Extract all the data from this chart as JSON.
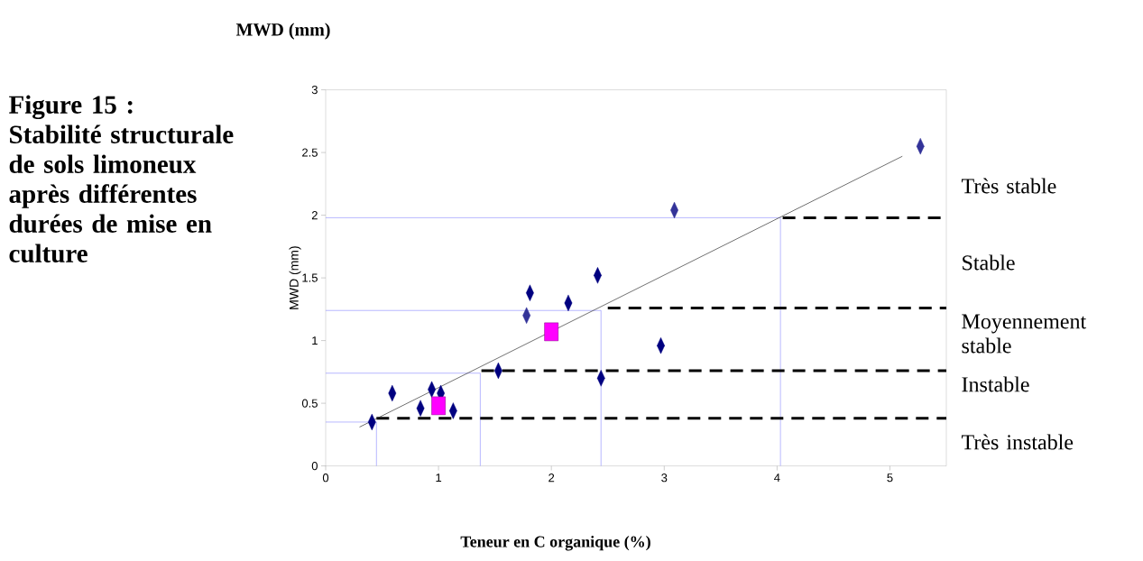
{
  "chart_data": {
    "type": "scatter",
    "title": "Figure 15 : Stabilité structurale de sols limoneux après différentes durées de mise en culture",
    "xlabel": "Teneur en C organique (%)",
    "ylabel": "MWD (mm)",
    "annotations": [
      "MWD (mm)",
      "Très stable",
      "Stable",
      "Moyennement stable",
      "Instable",
      "Très instable"
    ],
    "xlim": [
      0,
      5.5
    ],
    "ylim": [
      0,
      3
    ],
    "xticks": [
      0,
      1,
      2,
      3,
      4,
      5
    ],
    "yticks": [
      0,
      0.5,
      1,
      1.5,
      2,
      2.5,
      3
    ],
    "grid": false,
    "series": [
      {
        "type": "line",
        "color": "#9999ff",
        "marker": "none",
        "line_style": "solid",
        "x": [
          0,
          4.03,
          4.03
        ],
        "values": [
          1.98,
          1.98,
          0
        ]
      },
      {
        "type": "line",
        "color": "#9999ff",
        "marker": "none",
        "line_style": "solid",
        "x": [
          0,
          2.44,
          2.44
        ],
        "values": [
          1.24,
          1.24,
          0
        ]
      },
      {
        "type": "line",
        "color": "#9999ff",
        "marker": "none",
        "line_style": "solid",
        "x": [
          0,
          1.37,
          1.37
        ],
        "values": [
          0.74,
          0.74,
          0
        ]
      },
      {
        "type": "line",
        "color": "#9999ff",
        "marker": "none",
        "line_style": "solid",
        "x": [
          0,
          0.45,
          0.45
        ],
        "values": [
          0.35,
          0.35,
          0
        ]
      },
      {
        "type": "line",
        "color": "#000000",
        "marker": "none",
        "line_style": "dashed",
        "x": [
          4.05,
          5.5
        ],
        "values": [
          1.98,
          1.98
        ]
      },
      {
        "type": "line",
        "color": "#000000",
        "marker": "none",
        "line_style": "dashed",
        "x": [
          2.5,
          5.5
        ],
        "values": [
          1.26,
          1.26
        ]
      },
      {
        "type": "line",
        "color": "#000000",
        "marker": "none",
        "line_style": "dashed",
        "x": [
          1.38,
          5.5
        ],
        "values": [
          0.76,
          0.76
        ]
      },
      {
        "type": "line",
        "color": "#000000",
        "marker": "none",
        "line_style": "dashed",
        "x": [
          0.45,
          5.5
        ],
        "values": [
          0.38,
          0.38
        ]
      },
      {
        "type": "line",
        "color": "#333333",
        "marker": "none",
        "line_style": "solid",
        "x": [
          0.3,
          5.11
        ],
        "values": [
          0.31,
          2.47
        ]
      },
      {
        "color": "#000080",
        "marker": "diamond",
        "x": [
          0.41,
          0.59,
          0.84,
          0.94,
          1.02,
          1.13,
          1.53,
          1.81,
          2.15,
          2.41,
          2.44,
          2.97
        ],
        "values": [
          0.35,
          0.58,
          0.46,
          0.61,
          0.58,
          0.44,
          0.76,
          1.38,
          1.3,
          1.52,
          0.7,
          0.96
        ]
      },
      {
        "color": "#333399",
        "marker": "diamond",
        "x": [
          1.78,
          3.09,
          5.27
        ],
        "values": [
          1.2,
          2.04,
          2.55
        ]
      },
      {
        "color": "#ff00ff",
        "marker": "square",
        "x": [
          1.0,
          2.0
        ],
        "values": [
          0.48,
          1.07
        ]
      }
    ]
  }
}
